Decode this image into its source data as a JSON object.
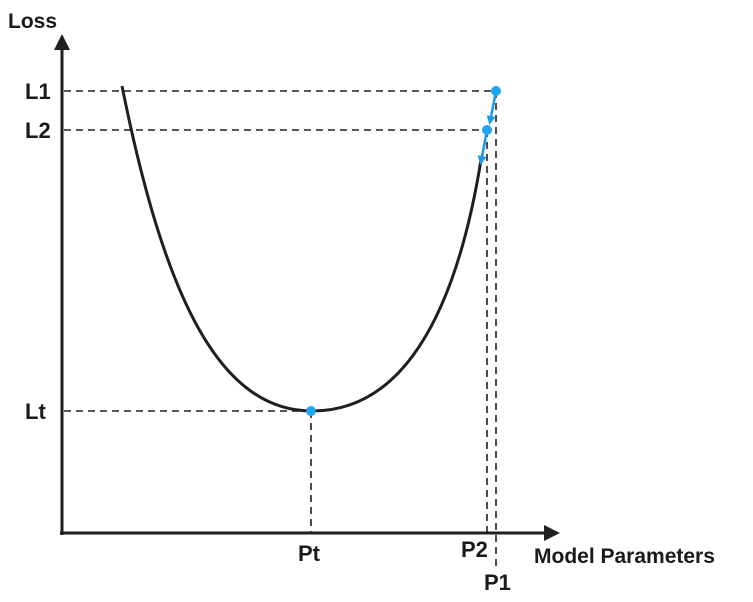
{
  "diagram": {
    "y_axis_label": "Loss",
    "x_axis_label": "Model Parameters",
    "y_ticks": {
      "l1": "L1",
      "l2": "L2",
      "lt": "Lt"
    },
    "x_ticks": {
      "pt": "Pt",
      "p2": "P2",
      "p1": "P1"
    },
    "colors": {
      "curve": "#1f1f1f",
      "points": "#1ea7f0",
      "gradient_steps": "#1a9be6"
    },
    "shape": "u-shaped-loss-curve"
  }
}
